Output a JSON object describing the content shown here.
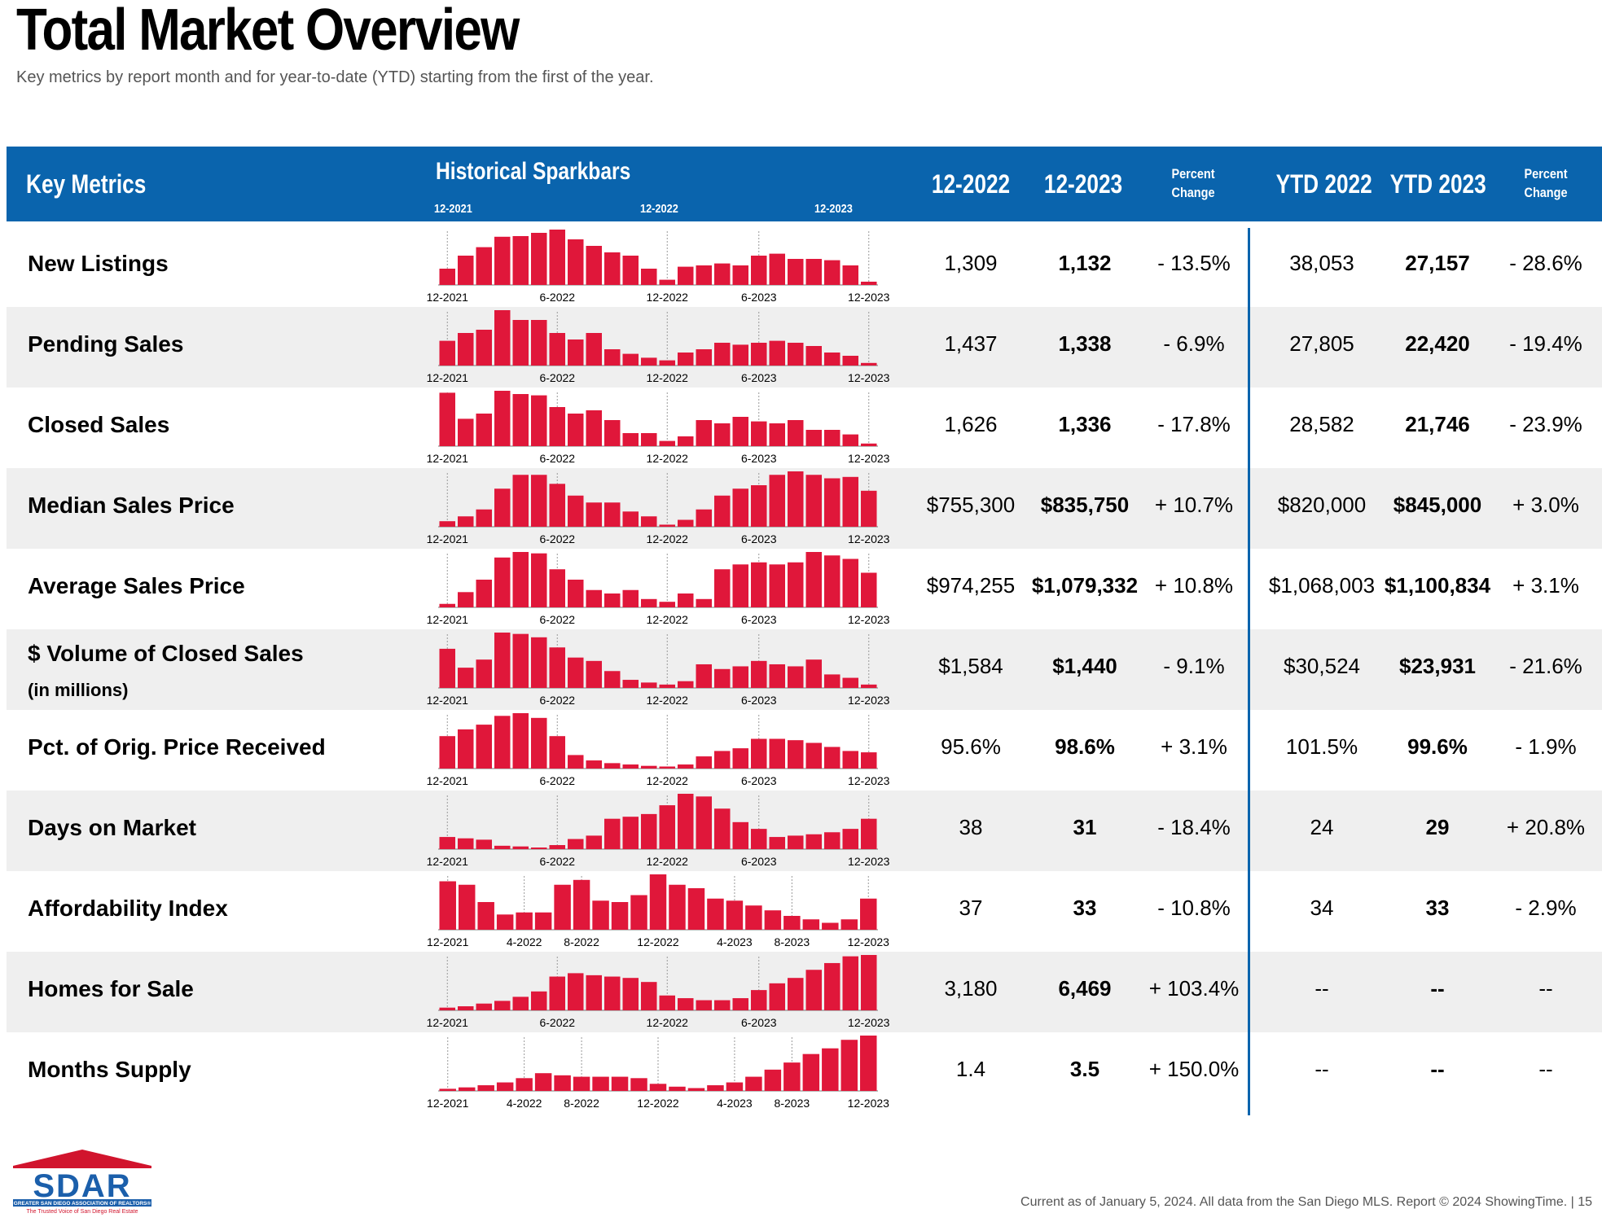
{
  "header": {
    "title": "Total Market Overview",
    "subtitle": "Key metrics by report month and for year-to-date (YTD) starting from the first of the year."
  },
  "table_header": {
    "key_metrics": "Key Metrics",
    "historical_sparkbars": "Historical Sparkbars",
    "spark_axis": [
      "12-2021",
      "12-2022",
      "12-2023"
    ],
    "col_12_2022": "12-2022",
    "col_12_2023": "12-2023",
    "percent_change_1": [
      "Percent",
      "Change"
    ],
    "ytd_2022": "YTD 2022",
    "ytd_2023": "YTD 2023",
    "percent_change_2": [
      "Percent",
      "Change"
    ]
  },
  "bar_color": "#e0173a",
  "rows": [
    {
      "label": "New Listings",
      "sublabel": "",
      "v2022": "1,309",
      "v2023": "1,132",
      "pct": "- 13.5%",
      "ytd2022": "38,053",
      "ytd2023": "27,157",
      "ytdpct": "- 28.6%",
      "axis": [
        "12-2021",
        "6-2022",
        "12-2022",
        "6-2023",
        "12-2023"
      ],
      "values": [
        25,
        45,
        58,
        74,
        75,
        80,
        85,
        70,
        60,
        50,
        45,
        25,
        8,
        28,
        30,
        33,
        30,
        45,
        48,
        40,
        40,
        38,
        30,
        5
      ]
    },
    {
      "label": "Pending Sales",
      "sublabel": "",
      "v2022": "1,437",
      "v2023": "1,338",
      "pct": "- 6.9%",
      "ytd2022": "27,805",
      "ytd2023": "22,420",
      "ytdpct": "- 19.4%",
      "axis": [
        "12-2021",
        "6-2022",
        "12-2022",
        "6-2023",
        "12-2023"
      ],
      "values": [
        38,
        50,
        55,
        85,
        70,
        70,
        50,
        40,
        50,
        25,
        18,
        12,
        8,
        20,
        25,
        35,
        32,
        35,
        38,
        35,
        30,
        20,
        15,
        4
      ]
    },
    {
      "label": "Closed Sales",
      "sublabel": "",
      "v2022": "1,626",
      "v2023": "1,336",
      "pct": "- 17.8%",
      "ytd2022": "28,582",
      "ytd2023": "21,746",
      "ytdpct": "- 23.9%",
      "axis": [
        "12-2021",
        "6-2022",
        "12-2022",
        "6-2023",
        "12-2023"
      ],
      "values": [
        82,
        42,
        50,
        85,
        80,
        78,
        60,
        50,
        55,
        40,
        20,
        20,
        8,
        15,
        40,
        35,
        45,
        38,
        35,
        40,
        25,
        25,
        18,
        4
      ]
    },
    {
      "label": "Median Sales Price",
      "sublabel": "",
      "v2022": "$755,300",
      "v2023": "$835,750",
      "pct": "+ 10.7%",
      "ytd2022": "$820,000",
      "ytd2023": "$845,000",
      "ytdpct": "+ 3.0%",
      "axis": [
        "12-2021",
        "6-2022",
        "12-2022",
        "6-2023",
        "12-2023"
      ],
      "values": [
        8,
        15,
        25,
        55,
        75,
        75,
        62,
        45,
        35,
        35,
        22,
        15,
        3,
        10,
        25,
        45,
        55,
        60,
        75,
        80,
        75,
        70,
        72,
        52
      ]
    },
    {
      "label": "Average Sales Price",
      "sublabel": "",
      "v2022": "$974,255",
      "v2023": "$1,079,332",
      "pct": "+ 10.8%",
      "ytd2022": "$1,068,003",
      "ytd2023": "$1,100,834",
      "ytdpct": "+ 3.1%",
      "axis": [
        "12-2021",
        "6-2022",
        "12-2022",
        "6-2023",
        "12-2023"
      ],
      "values": [
        5,
        22,
        40,
        72,
        80,
        78,
        55,
        40,
        25,
        20,
        25,
        12,
        8,
        20,
        12,
        55,
        62,
        65,
        62,
        65,
        80,
        75,
        70,
        50
      ]
    },
    {
      "label": "$ Volume of Closed Sales",
      "sublabel": "(in millions)",
      "v2022": "$1,584",
      "v2023": "$1,440",
      "pct": "- 9.1%",
      "ytd2022": "$30,524",
      "ytd2023": "$23,931",
      "ytdpct": "- 21.6%",
      "axis": [
        "12-2021",
        "6-2022",
        "12-2022",
        "6-2023",
        "12-2023"
      ],
      "values": [
        58,
        30,
        42,
        82,
        80,
        75,
        60,
        45,
        40,
        25,
        12,
        8,
        5,
        10,
        35,
        28,
        32,
        40,
        35,
        32,
        42,
        20,
        15,
        5
      ]
    },
    {
      "label": "Pct. of Orig. Price Received",
      "sublabel": "",
      "v2022": "95.6%",
      "v2023": "98.6%",
      "pct": "+ 3.1%",
      "ytd2022": "101.5%",
      "ytd2023": "99.6%",
      "ytdpct": "- 1.9%",
      "axis": [
        "12-2021",
        "6-2022",
        "12-2022",
        "6-2023",
        "12-2023"
      ],
      "values": [
        48,
        58,
        65,
        78,
        82,
        75,
        48,
        20,
        12,
        8,
        6,
        4,
        3,
        6,
        18,
        26,
        30,
        44,
        44,
        42,
        38,
        32,
        26,
        24
      ]
    },
    {
      "label": "Days on Market",
      "sublabel": "",
      "v2022": "38",
      "v2023": "31",
      "pct": "- 18.4%",
      "ytd2022": "24",
      "ytd2023": "29",
      "ytdpct": "+ 20.8%",
      "axis": [
        "12-2021",
        "6-2022",
        "12-2022",
        "6-2023",
        "12-2023"
      ],
      "values": [
        18,
        16,
        14,
        5,
        4,
        2,
        6,
        15,
        20,
        45,
        48,
        52,
        65,
        82,
        78,
        60,
        40,
        30,
        18,
        20,
        22,
        25,
        30,
        45
      ]
    },
    {
      "label": "Affordability Index",
      "sublabel": "",
      "v2022": "37",
      "v2023": "33",
      "pct": "- 10.8%",
      "ytd2022": "34",
      "ytd2023": "33",
      "ytdpct": "- 2.9%",
      "axis": [
        "12-2021",
        "4-2022",
        "8-2022",
        "12-2022",
        "4-2023",
        "8-2023",
        "12-2023"
      ],
      "values": [
        70,
        65,
        40,
        22,
        25,
        25,
        65,
        72,
        42,
        40,
        50,
        80,
        65,
        60,
        45,
        42,
        35,
        28,
        20,
        15,
        10,
        15,
        45
      ]
    },
    {
      "label": "Homes for Sale",
      "sublabel": "",
      "v2022": "3,180",
      "v2023": "6,469",
      "pct": "+ 103.4%",
      "ytd2022": "--",
      "ytd2023": "--",
      "ytdpct": "--",
      "axis": [
        "12-2021",
        "6-2022",
        "12-2022",
        "6-2023",
        "12-2023"
      ],
      "values": [
        4,
        6,
        10,
        14,
        20,
        28,
        50,
        55,
        52,
        50,
        48,
        42,
        22,
        18,
        15,
        15,
        18,
        30,
        40,
        48,
        60,
        70,
        80,
        82
      ]
    },
    {
      "label": "Months Supply",
      "sublabel": "",
      "v2022": "1.4",
      "v2023": "3.5",
      "pct": "+ 150.0%",
      "ytd2022": "--",
      "ytd2023": "--",
      "ytdpct": "--",
      "axis": [
        "12-2021",
        "4-2022",
        "8-2022",
        "12-2022",
        "4-2023",
        "8-2023",
        "12-2023"
      ],
      "values": [
        3,
        5,
        8,
        12,
        18,
        25,
        22,
        20,
        20,
        20,
        18,
        10,
        6,
        4,
        8,
        12,
        20,
        30,
        40,
        52,
        60,
        72,
        78
      ]
    }
  ],
  "footer": {
    "logo_text": "SDAR",
    "logo_sub1": "GREATER SAN DIEGO ASSOCIATION OF REALTORS®",
    "logo_sub2": "The Trusted Voice of San Diego Real Estate",
    "note": "Current as of January 5, 2024. All data from the San Diego MLS. Report © 2024 ShowingTime.  |  15"
  }
}
